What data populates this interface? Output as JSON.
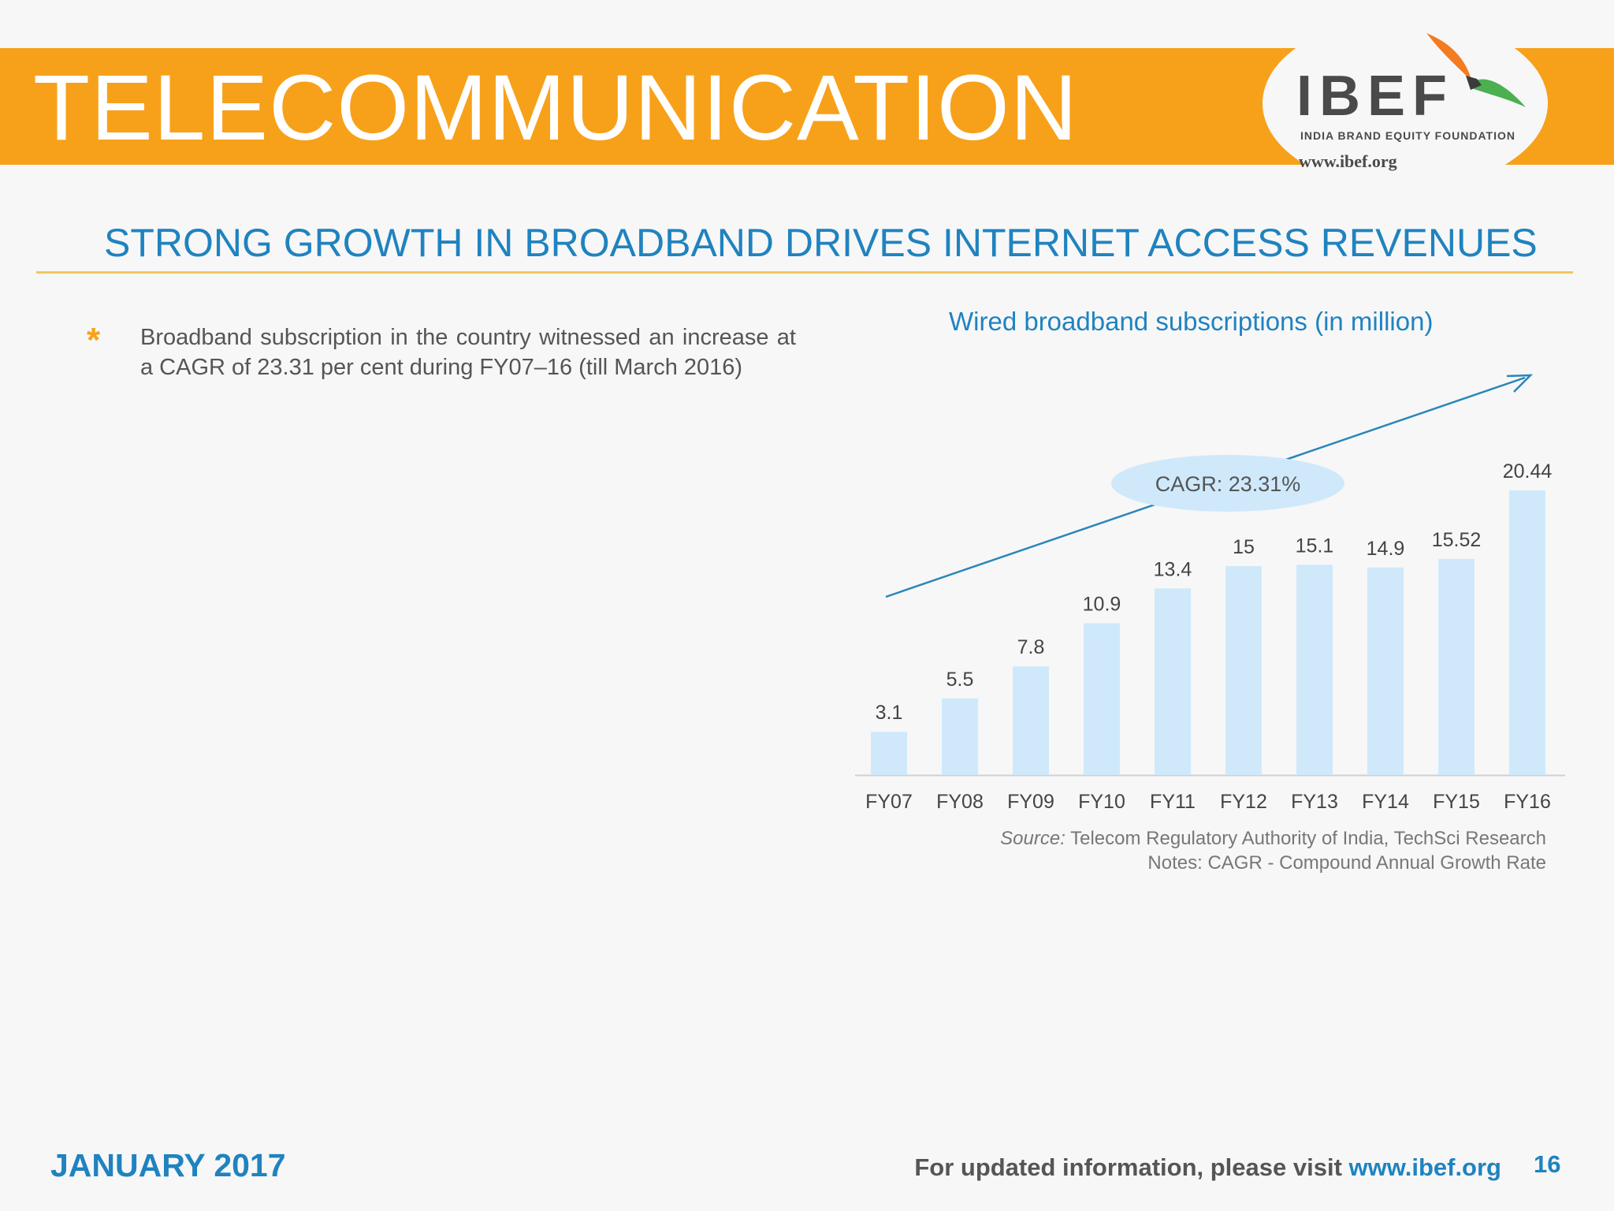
{
  "header": {
    "title": "TELECOMMUNICATION",
    "logo": {
      "wordmark": "IBEF",
      "tagline": "INDIA BRAND EQUITY FOUNDATION",
      "url": "www.ibef.org"
    }
  },
  "slide": {
    "subtitle": "STRONG GROWTH IN BROADBAND DRIVES INTERNET ACCESS REVENUES"
  },
  "bullets": [
    {
      "icon": "asterisk-bullet-icon",
      "text": "Broadband subscription in the country witnessed an increase at a CAGR of 23.31 per cent during FY07–16 (till March 2016)"
    }
  ],
  "chart_data": {
    "type": "bar",
    "title": "Wired broadband subscriptions (in million)",
    "categories": [
      "FY07",
      "FY08",
      "FY09",
      "FY10",
      "FY11",
      "FY12",
      "FY13",
      "FY14",
      "FY15",
      "FY16"
    ],
    "values": [
      3.1,
      5.5,
      7.8,
      10.9,
      13.4,
      15,
      15.1,
      14.9,
      15.52,
      20.44
    ],
    "data_labels": [
      "3.1",
      "5.5",
      "7.8",
      "10.9",
      "13.4",
      "15",
      "15.1",
      "14.9",
      "15.52",
      "20.44"
    ],
    "ylim": [
      0,
      20.44
    ],
    "grid": false,
    "annotation": "CAGR: 23.31%",
    "colors": {
      "bar": "#cfe9fb",
      "trend_arrow": "#2a86b8",
      "annotation_bubble": "#cfe9fb",
      "axis": "#d0d0d0"
    }
  },
  "source": {
    "label": "Source:",
    "text": " Telecom Regulatory Authority of India, TechSci Research",
    "notes": "Notes: CAGR - Compound Annual Growth Rate"
  },
  "footer": {
    "date": "JANUARY 2017",
    "visit_text": "For updated information, please visit ",
    "url": "www.ibef.org",
    "page_number": "16"
  },
  "colors": {
    "banner": "#f7a11a",
    "heading_blue": "#1f83bf",
    "rule": "#f2c65c",
    "body_text": "#555555"
  }
}
